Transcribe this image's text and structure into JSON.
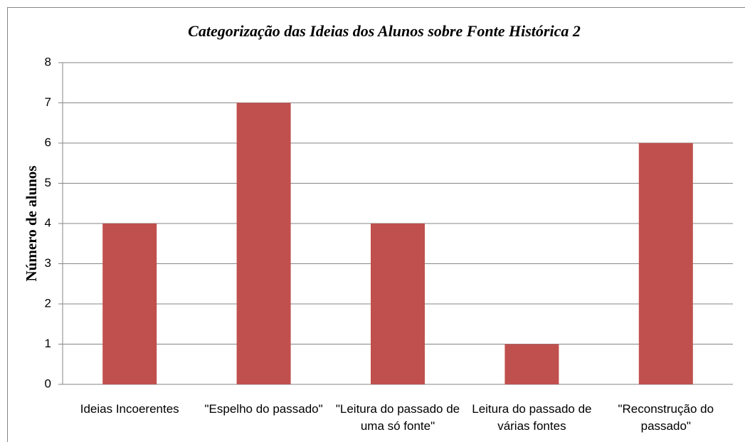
{
  "chart_data": {
    "type": "bar",
    "title": "Categorização das Ideias dos Alunos sobre Fonte Histórica 2",
    "y_label": "Número de alunos",
    "categories": [
      "Ideias Incoerentes",
      "\"Espelho do passado\"",
      "\"Leitura do passado de uma só fonte\"",
      "Leitura do passado de várias fontes",
      "\"Reconstrução do passado\""
    ],
    "values": [
      4,
      7,
      4,
      1,
      6
    ],
    "color": "#c0504d",
    "ylim": [
      0,
      8
    ],
    "yticks": [
      0,
      1,
      2,
      3,
      4,
      5,
      6,
      7,
      8
    ],
    "grid": true
  }
}
